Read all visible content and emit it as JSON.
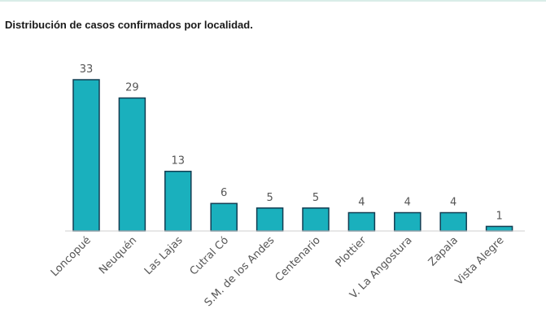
{
  "chart_data": {
    "type": "bar",
    "title": "Distribución de casos confirmados por localidad.",
    "categories": [
      "Loncopué",
      "Neuquén",
      "Las Lajas",
      "Cutral Có",
      "S.M. de los Andes",
      "Centenario",
      "Plottier",
      "V. La Angostura",
      "Zapala",
      "Vista Alegre"
    ],
    "values": [
      33,
      29,
      13,
      6,
      5,
      5,
      4,
      4,
      4,
      1
    ],
    "xlabel": "",
    "ylabel": "",
    "ylim": [
      0,
      33
    ],
    "grid": false,
    "legend": "none",
    "colors": {
      "bar_fill": "#1ab0bd",
      "bar_stroke": "#123d52",
      "axis": "#cfcfcf",
      "label_text": "#555555",
      "title_text": "#1a1a1a"
    }
  }
}
